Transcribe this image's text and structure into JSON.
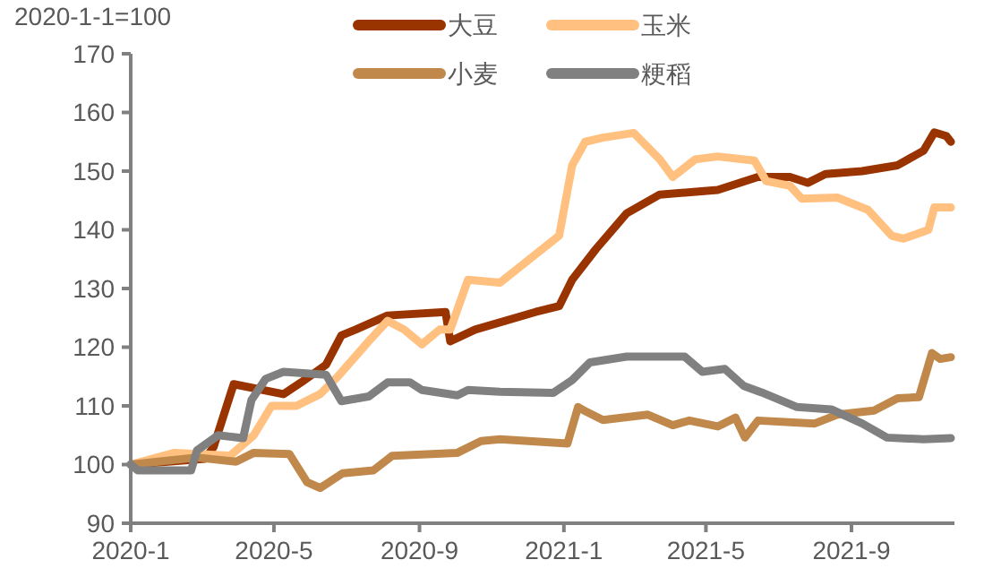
{
  "chart_data": {
    "type": "line",
    "title": "2020-1-1=100",
    "xlim": [
      "2020-01-01",
      "2021-11-27"
    ],
    "xticks": [
      {
        "value": "2020-01",
        "label": "2020-1"
      },
      {
        "value": "2020-05",
        "label": "2020-5"
      },
      {
        "value": "2020-09",
        "label": "2020-9"
      },
      {
        "value": "2021-01",
        "label": "2021-1"
      },
      {
        "value": "2021-05",
        "label": "2021-5"
      },
      {
        "value": "2021-09",
        "label": "2021-9"
      }
    ],
    "ylim": [
      90,
      170
    ],
    "yticks": [
      90,
      100,
      110,
      120,
      130,
      140,
      150,
      160,
      170
    ],
    "grid": false,
    "legend": "top",
    "marker": "none",
    "line_style": "solid",
    "series": [
      {
        "name": "大豆",
        "color": "#993300",
        "x": [
          "2020-01-01",
          "2020-03-04",
          "2020-03-11",
          "2020-03-28",
          "2020-05-09",
          "2020-05-24",
          "2020-06-14",
          "2020-06-27",
          "2020-07-09",
          "2020-08-05",
          "2020-09-23",
          "2020-09-27",
          "2020-10-18",
          "2020-12-08",
          "2020-12-28",
          "2021-01-08",
          "2021-01-28",
          "2021-02-23",
          "2021-03-23",
          "2021-05-11",
          "2021-06-14",
          "2021-07-11",
          "2021-07-26",
          "2021-08-10",
          "2021-09-10",
          "2021-10-10",
          "2021-11-01",
          "2021-11-10",
          "2021-11-20",
          "2021-11-24"
        ],
        "values": [
          100,
          101,
          103,
          113.7,
          112,
          114,
          117,
          122,
          123,
          125.4,
          126,
          121,
          123,
          126,
          127,
          131.5,
          136.7,
          142.8,
          146,
          146.8,
          149,
          149,
          148,
          149.5,
          150,
          151,
          153.5,
          156.6,
          156,
          155
        ]
      },
      {
        "name": "玉米",
        "color": "#ffc080",
        "x": [
          "2020-01-01",
          "2020-02-07",
          "2020-03-25",
          "2020-04-14",
          "2020-04-29",
          "2020-05-20",
          "2020-06-09",
          "2020-06-24",
          "2020-07-20",
          "2020-08-05",
          "2020-08-19",
          "2020-09-03",
          "2020-09-18",
          "2020-09-27",
          "2020-10-12",
          "2020-11-08",
          "2020-12-08",
          "2020-12-28",
          "2021-01-08",
          "2021-01-19",
          "2021-02-03",
          "2021-03-01",
          "2021-03-23",
          "2021-04-03",
          "2021-04-22",
          "2021-05-11",
          "2021-06-11",
          "2021-06-21",
          "2021-07-11",
          "2021-07-21",
          "2021-08-20",
          "2021-09-15",
          "2021-10-05",
          "2021-10-15",
          "2021-11-05",
          "2021-11-10",
          "2021-11-24"
        ],
        "values": [
          100,
          102,
          101.5,
          105,
          110,
          110,
          112,
          115,
          121,
          124.5,
          123,
          120.5,
          123,
          123,
          131.5,
          131,
          135.8,
          139,
          151,
          155,
          155.7,
          156.5,
          152,
          149,
          152,
          152.5,
          151.8,
          148.3,
          147.5,
          145.3,
          145.5,
          143.4,
          139,
          138.5,
          140,
          143.8,
          143.8
        ]
      },
      {
        "name": "小麦",
        "color": "#c0894b",
        "x": [
          "2020-01-01",
          "2020-02-26",
          "2020-03-30",
          "2020-04-14",
          "2020-05-14",
          "2020-05-29",
          "2020-06-09",
          "2020-06-28",
          "2020-07-24",
          "2020-08-09",
          "2020-10-03",
          "2020-10-23",
          "2020-11-08",
          "2021-01-04",
          "2021-01-13",
          "2021-01-20",
          "2021-02-03",
          "2021-03-13",
          "2021-04-03",
          "2021-04-17",
          "2021-05-11",
          "2021-05-26",
          "2021-06-03",
          "2021-06-14",
          "2021-08-01",
          "2021-08-20",
          "2021-09-20",
          "2021-10-10",
          "2021-10-28",
          "2021-11-08",
          "2021-11-15",
          "2021-11-24"
        ],
        "values": [
          100,
          101.2,
          100.5,
          102,
          101.8,
          97,
          96,
          98.5,
          99,
          101.5,
          102,
          104,
          104.3,
          103.6,
          109.8,
          109,
          107.6,
          108.5,
          106.7,
          107.5,
          106.5,
          108,
          104.6,
          107.5,
          107,
          108.5,
          109.2,
          111.3,
          111.5,
          119,
          118,
          118.3
        ]
      },
      {
        "name": "粳稻",
        "color": "#808080",
        "x": [
          "2020-01-01",
          "2020-01-07",
          "2020-02-21",
          "2020-02-26",
          "2020-03-15",
          "2020-04-05",
          "2020-04-12",
          "2020-04-24",
          "2020-05-09",
          "2020-06-14",
          "2020-06-27",
          "2020-07-20",
          "2020-08-05",
          "2020-08-24",
          "2020-09-03",
          "2020-10-03",
          "2020-10-12",
          "2020-11-08",
          "2020-12-23",
          "2021-01-08",
          "2021-01-23",
          "2021-02-23",
          "2021-04-13",
          "2021-04-28",
          "2021-05-17",
          "2021-06-02",
          "2021-06-17",
          "2021-07-17",
          "2021-08-15",
          "2021-09-10",
          "2021-10-01",
          "2021-11-01",
          "2021-11-24"
        ],
        "values": [
          100,
          99,
          99,
          102.4,
          105,
          104.5,
          111,
          114.6,
          115.8,
          115.3,
          110.8,
          111.6,
          114,
          114,
          112.7,
          111.8,
          112.7,
          112.4,
          112.2,
          114.4,
          117.4,
          118.4,
          118.4,
          115.8,
          116.3,
          113.4,
          112.3,
          109.8,
          109.4,
          107,
          104.6,
          104.3,
          104.5
        ]
      }
    ]
  }
}
